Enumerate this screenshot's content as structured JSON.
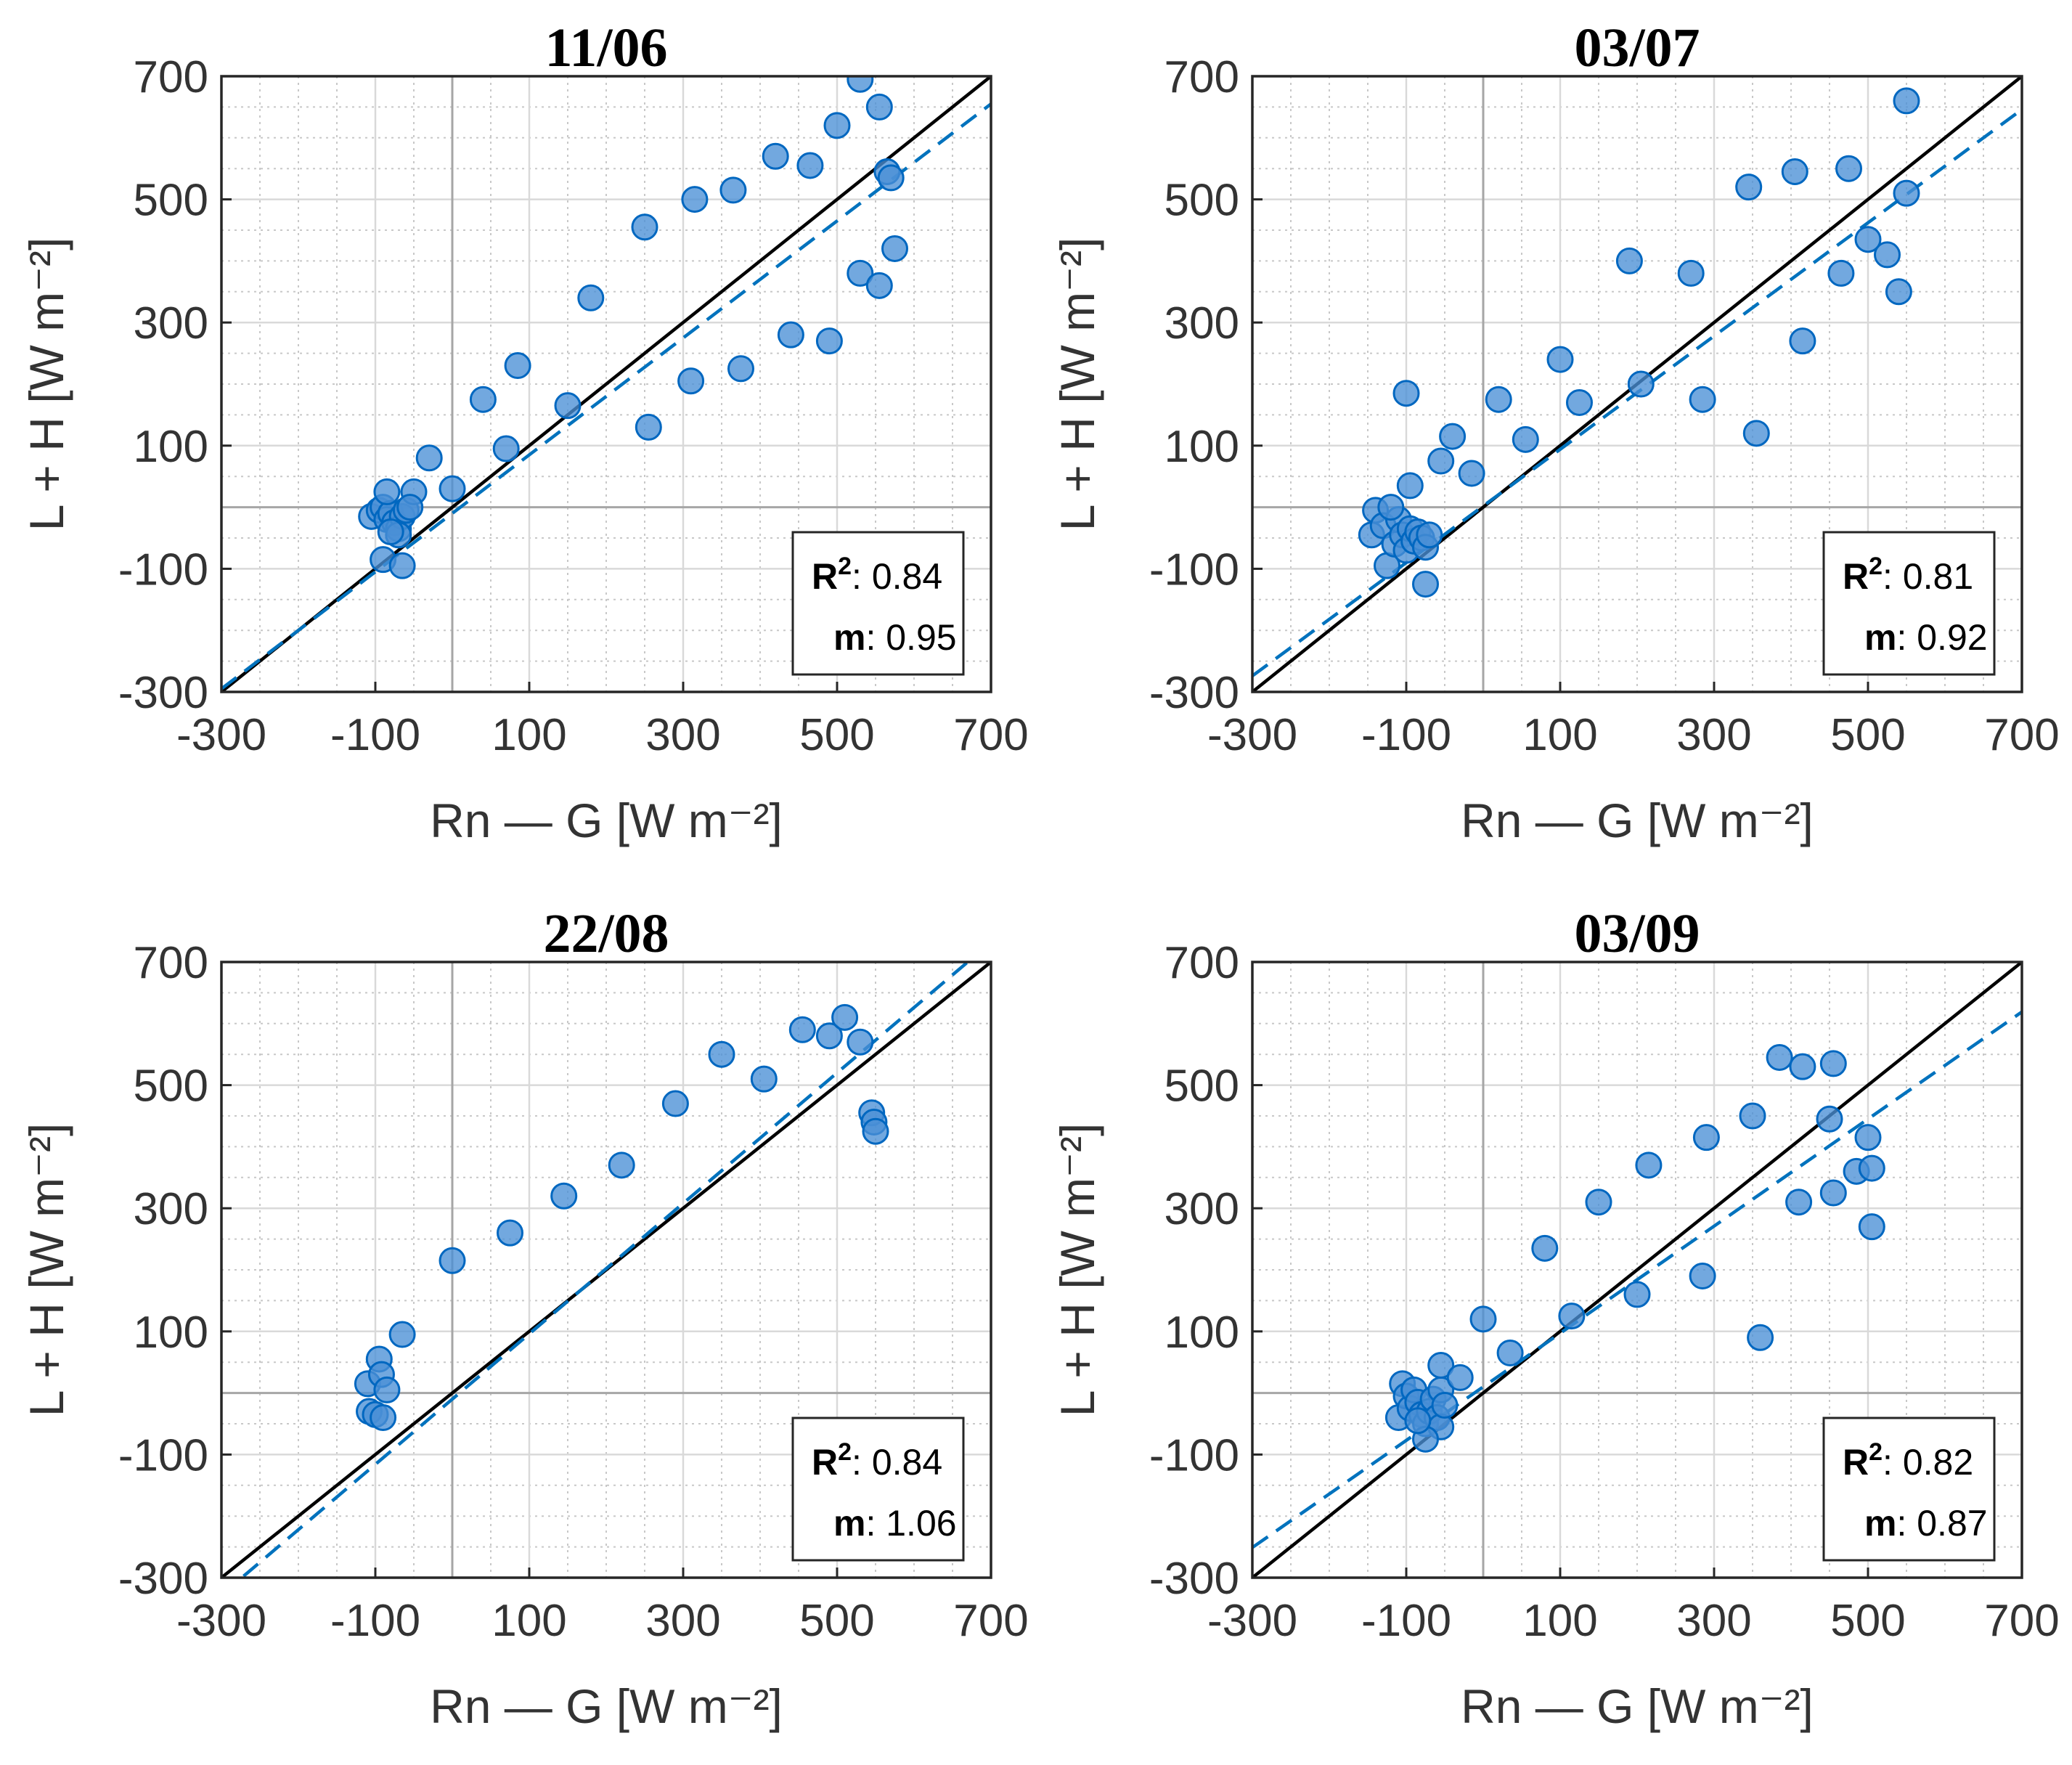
{
  "chart_data": [
    {
      "type": "scatter",
      "title": "11/06",
      "xlabel": "Rn — G [W m⁻²]",
      "ylabel": "L + H [W m⁻²]",
      "xlim": [
        -300,
        700
      ],
      "ylim": [
        -300,
        700
      ],
      "xticks": [
        "-300",
        "-100",
        "100",
        "300",
        "500",
        "700"
      ],
      "yticks": [
        "-300",
        "-100",
        "100",
        "300",
        "500",
        "700"
      ],
      "grid": true,
      "stats": {
        "r2_label": "R",
        "r2_sup": "2",
        "r2_value": ": 0.84",
        "m_label": "m",
        "m_value": ": 0.95"
      },
      "fit_slope": 0.95,
      "fit_intercept": -10,
      "points": [
        [
          -105,
          -15
        ],
        [
          -95,
          -5
        ],
        [
          -90,
          0
        ],
        [
          -85,
          -20
        ],
        [
          -80,
          -10
        ],
        [
          -75,
          -25
        ],
        [
          -70,
          -35
        ],
        [
          -65,
          -15
        ],
        [
          -60,
          -5
        ],
        [
          -70,
          -45
        ],
        [
          -80,
          -40
        ],
        [
          -90,
          -85
        ],
        [
          -65,
          -95
        ],
        [
          -85,
          25
        ],
        [
          -50,
          25
        ],
        [
          -55,
          0
        ],
        [
          -30,
          80
        ],
        [
          0,
          30
        ],
        [
          40,
          175
        ],
        [
          85,
          230
        ],
        [
          70,
          95
        ],
        [
          150,
          165
        ],
        [
          180,
          340
        ],
        [
          250,
          455
        ],
        [
          255,
          130
        ],
        [
          310,
          205
        ],
        [
          315,
          500
        ],
        [
          365,
          515
        ],
        [
          375,
          225
        ],
        [
          420,
          570
        ],
        [
          440,
          280
        ],
        [
          465,
          555
        ],
        [
          490,
          270
        ],
        [
          500,
          620
        ],
        [
          530,
          695
        ],
        [
          555,
          650
        ],
        [
          565,
          545
        ],
        [
          570,
          535
        ],
        [
          575,
          420
        ],
        [
          530,
          380
        ],
        [
          555,
          360
        ]
      ]
    },
    {
      "type": "scatter",
      "title": "03/07",
      "xlabel": "Rn — G [W m⁻²]",
      "ylabel": "L + H [W m⁻²]",
      "xlim": [
        -300,
        700
      ],
      "ylim": [
        -300,
        700
      ],
      "xticks": [
        "-300",
        "-100",
        "100",
        "300",
        "500",
        "700"
      ],
      "yticks": [
        "-300",
        "-100",
        "100",
        "300",
        "500",
        "700"
      ],
      "grid": true,
      "stats": {
        "r2_label": "R",
        "r2_sup": "2",
        "r2_value": ": 0.81",
        "m_label": "m",
        "m_value": ": 0.92"
      },
      "fit_slope": 0.92,
      "fit_intercept": 2,
      "points": [
        [
          -140,
          -5
        ],
        [
          -145,
          -45
        ],
        [
          -130,
          -30
        ],
        [
          -125,
          -95
        ],
        [
          -115,
          -60
        ],
        [
          -110,
          -20
        ],
        [
          -105,
          -45
        ],
        [
          -100,
          -70
        ],
        [
          -95,
          -35
        ],
        [
          -90,
          -55
        ],
        [
          -85,
          -40
        ],
        [
          -80,
          -50
        ],
        [
          -75,
          -65
        ],
        [
          -70,
          -45
        ],
        [
          -120,
          0
        ],
        [
          -95,
          35
        ],
        [
          -100,
          185
        ],
        [
          -75,
          -125
        ],
        [
          -55,
          75
        ],
        [
          -40,
          115
        ],
        [
          -15,
          55
        ],
        [
          20,
          175
        ],
        [
          55,
          110
        ],
        [
          100,
          240
        ],
        [
          125,
          170
        ],
        [
          190,
          400
        ],
        [
          205,
          200
        ],
        [
          270,
          380
        ],
        [
          285,
          175
        ],
        [
          345,
          520
        ],
        [
          355,
          120
        ],
        [
          405,
          545
        ],
        [
          415,
          270
        ],
        [
          475,
          550
        ],
        [
          465,
          380
        ],
        [
          500,
          435
        ],
        [
          525,
          410
        ],
        [
          540,
          350
        ],
        [
          550,
          510
        ],
        [
          550,
          660
        ]
      ]
    },
    {
      "type": "scatter",
      "title": "22/08",
      "xlabel": "Rn — G [W m⁻²]",
      "ylabel": "L + H [W m⁻²]",
      "xlim": [
        -300,
        700
      ],
      "ylim": [
        -300,
        700
      ],
      "xticks": [
        "-300",
        "-100",
        "100",
        "300",
        "500",
        "700"
      ],
      "yticks": [
        "-300",
        "-100",
        "100",
        "300",
        "500",
        "700"
      ],
      "grid": true,
      "stats": {
        "r2_label": "R",
        "r2_sup": "2",
        "r2_value": ": 0.84",
        "m_label": "m",
        "m_value": ": 1.06"
      },
      "fit_slope": 1.06,
      "fit_intercept": -10,
      "points": [
        [
          -110,
          15
        ],
        [
          -108,
          -30
        ],
        [
          -100,
          -35
        ],
        [
          -95,
          55
        ],
        [
          -92,
          30
        ],
        [
          -90,
          -40
        ],
        [
          -85,
          5
        ],
        [
          -65,
          95
        ],
        [
          0,
          215
        ],
        [
          75,
          260
        ],
        [
          145,
          320
        ],
        [
          220,
          370
        ],
        [
          290,
          470
        ],
        [
          350,
          550
        ],
        [
          405,
          510
        ],
        [
          455,
          590
        ],
        [
          490,
          580
        ],
        [
          510,
          610
        ],
        [
          530,
          570
        ],
        [
          545,
          455
        ],
        [
          548,
          440
        ],
        [
          550,
          425
        ]
      ]
    },
    {
      "type": "scatter",
      "title": "03/09",
      "xlabel": "Rn — G [W m⁻²]",
      "ylabel": "L + H [W m⁻²]",
      "xlim": [
        -300,
        700
      ],
      "ylim": [
        -300,
        700
      ],
      "xticks": [
        "-300",
        "-100",
        "100",
        "300",
        "500",
        "700"
      ],
      "yticks": [
        "-300",
        "-100",
        "100",
        "300",
        "500",
        "700"
      ],
      "grid": true,
      "stats": {
        "r2_label": "R",
        "r2_sup": "2",
        "r2_value": ": 0.82",
        "m_label": "m",
        "m_value": ": 0.87"
      },
      "fit_slope": 0.87,
      "fit_intercept": 10,
      "points": [
        [
          -110,
          -40
        ],
        [
          -105,
          15
        ],
        [
          -100,
          -5
        ],
        [
          -95,
          -25
        ],
        [
          -90,
          5
        ],
        [
          -85,
          -15
        ],
        [
          -80,
          -35
        ],
        [
          -75,
          -50
        ],
        [
          -70,
          -30
        ],
        [
          -65,
          -10
        ],
        [
          -60,
          -40
        ],
        [
          -55,
          -55
        ],
        [
          -55,
          5
        ],
        [
          -50,
          -20
        ],
        [
          -75,
          -75
        ],
        [
          -85,
          -45
        ],
        [
          -55,
          45
        ],
        [
          -30,
          25
        ],
        [
          0,
          120
        ],
        [
          35,
          65
        ],
        [
          80,
          235
        ],
        [
          115,
          125
        ],
        [
          150,
          310
        ],
        [
          200,
          160
        ],
        [
          215,
          370
        ],
        [
          285,
          190
        ],
        [
          290,
          415
        ],
        [
          350,
          450
        ],
        [
          360,
          90
        ],
        [
          385,
          545
        ],
        [
          415,
          530
        ],
        [
          455,
          535
        ],
        [
          450,
          445
        ],
        [
          410,
          310
        ],
        [
          455,
          325
        ],
        [
          485,
          360
        ],
        [
          505,
          365
        ],
        [
          500,
          415
        ],
        [
          505,
          270
        ]
      ]
    }
  ]
}
